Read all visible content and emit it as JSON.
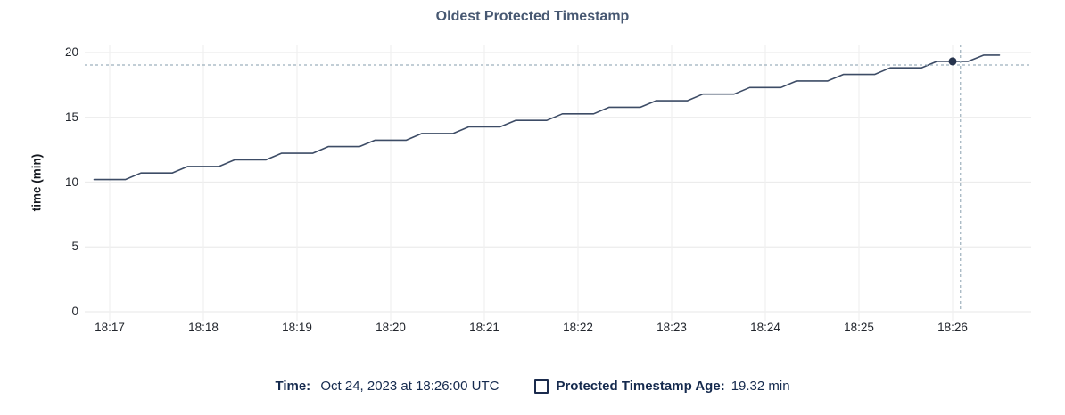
{
  "title": "Oldest Protected Timestamp",
  "y_axis": {
    "label": "time (min)",
    "ticks": [
      0,
      5,
      10,
      15,
      20
    ]
  },
  "x_axis": {
    "ticks": [
      "18:17",
      "18:18",
      "18:19",
      "18:20",
      "18:21",
      "18:22",
      "18:23",
      "18:24",
      "18:25",
      "18:26"
    ]
  },
  "tooltip": {
    "time_label": "Time:",
    "time_value": "Oct 24, 2023 at 18:26:00 UTC",
    "series_label": "Protected Timestamp Age:",
    "series_value": "19.32 min"
  },
  "colors": {
    "line": "#3d4c66",
    "dot": "#26334d",
    "crosshair": "#9db0bd",
    "grid_h": "#ececec",
    "grid_v": "#f0f0f0",
    "title_text": "#475872",
    "legend_text": "#152a4e"
  },
  "chart_data": {
    "type": "line",
    "title": "Oldest Protected Timestamp",
    "xlabel": "",
    "ylabel": "time (min)",
    "ylim": [
      0,
      20
    ],
    "grid": true,
    "legend_position": "bottom",
    "x_tick_labels": [
      "18:17",
      "18:18",
      "18:19",
      "18:20",
      "18:21",
      "18:22",
      "18:23",
      "18:24",
      "18:25",
      "18:26"
    ],
    "y_tick_labels": [
      0,
      5,
      10,
      15,
      20
    ],
    "series": [
      {
        "name": "Protected Timestamp Age",
        "unit": "min",
        "points": [
          [
            "18:16:50",
            10.2
          ],
          [
            "18:17:00",
            10.2
          ],
          [
            "18:17:10",
            10.2
          ],
          [
            "18:17:20",
            10.71
          ],
          [
            "18:17:30",
            10.71
          ],
          [
            "18:17:40",
            10.71
          ],
          [
            "18:17:50",
            11.21
          ],
          [
            "18:18:00",
            11.21
          ],
          [
            "18:18:10",
            11.21
          ],
          [
            "18:18:20",
            11.72
          ],
          [
            "18:18:30",
            11.72
          ],
          [
            "18:18:40",
            11.72
          ],
          [
            "18:18:50",
            12.23
          ],
          [
            "18:19:00",
            12.23
          ],
          [
            "18:19:10",
            12.23
          ],
          [
            "18:19:20",
            12.74
          ],
          [
            "18:19:30",
            12.74
          ],
          [
            "18:19:40",
            12.74
          ],
          [
            "18:19:50",
            13.24
          ],
          [
            "18:20:00",
            13.24
          ],
          [
            "18:20:10",
            13.24
          ],
          [
            "18:20:20",
            13.75
          ],
          [
            "18:20:30",
            13.75
          ],
          [
            "18:20:40",
            13.75
          ],
          [
            "18:20:50",
            14.26
          ],
          [
            "18:21:00",
            14.26
          ],
          [
            "18:21:10",
            14.26
          ],
          [
            "18:21:20",
            14.76
          ],
          [
            "18:21:30",
            14.76
          ],
          [
            "18:21:40",
            14.76
          ],
          [
            "18:21:50",
            15.27
          ],
          [
            "18:22:00",
            15.27
          ],
          [
            "18:22:10",
            15.27
          ],
          [
            "18:22:20",
            15.78
          ],
          [
            "18:22:30",
            15.78
          ],
          [
            "18:22:40",
            15.78
          ],
          [
            "18:22:50",
            16.28
          ],
          [
            "18:23:00",
            16.28
          ],
          [
            "18:23:10",
            16.28
          ],
          [
            "18:23:20",
            16.79
          ],
          [
            "18:23:30",
            16.79
          ],
          [
            "18:23:40",
            16.79
          ],
          [
            "18:23:50",
            17.3
          ],
          [
            "18:24:00",
            17.3
          ],
          [
            "18:24:10",
            17.3
          ],
          [
            "18:24:20",
            17.81
          ],
          [
            "18:24:30",
            17.81
          ],
          [
            "18:24:40",
            17.81
          ],
          [
            "18:24:50",
            18.31
          ],
          [
            "18:25:00",
            18.31
          ],
          [
            "18:25:10",
            18.31
          ],
          [
            "18:25:20",
            18.82
          ],
          [
            "18:25:30",
            18.82
          ],
          [
            "18:25:40",
            18.82
          ],
          [
            "18:25:50",
            19.32
          ],
          [
            "18:26:00",
            19.32
          ],
          [
            "18:26:10",
            19.32
          ],
          [
            "18:26:20",
            19.8
          ],
          [
            "18:26:30",
            19.8
          ]
        ]
      }
    ],
    "highlight_point": {
      "t": "18:26:00",
      "v": 19.32
    },
    "crosshair": {
      "t": "18:26:05",
      "v": 19.04
    }
  }
}
